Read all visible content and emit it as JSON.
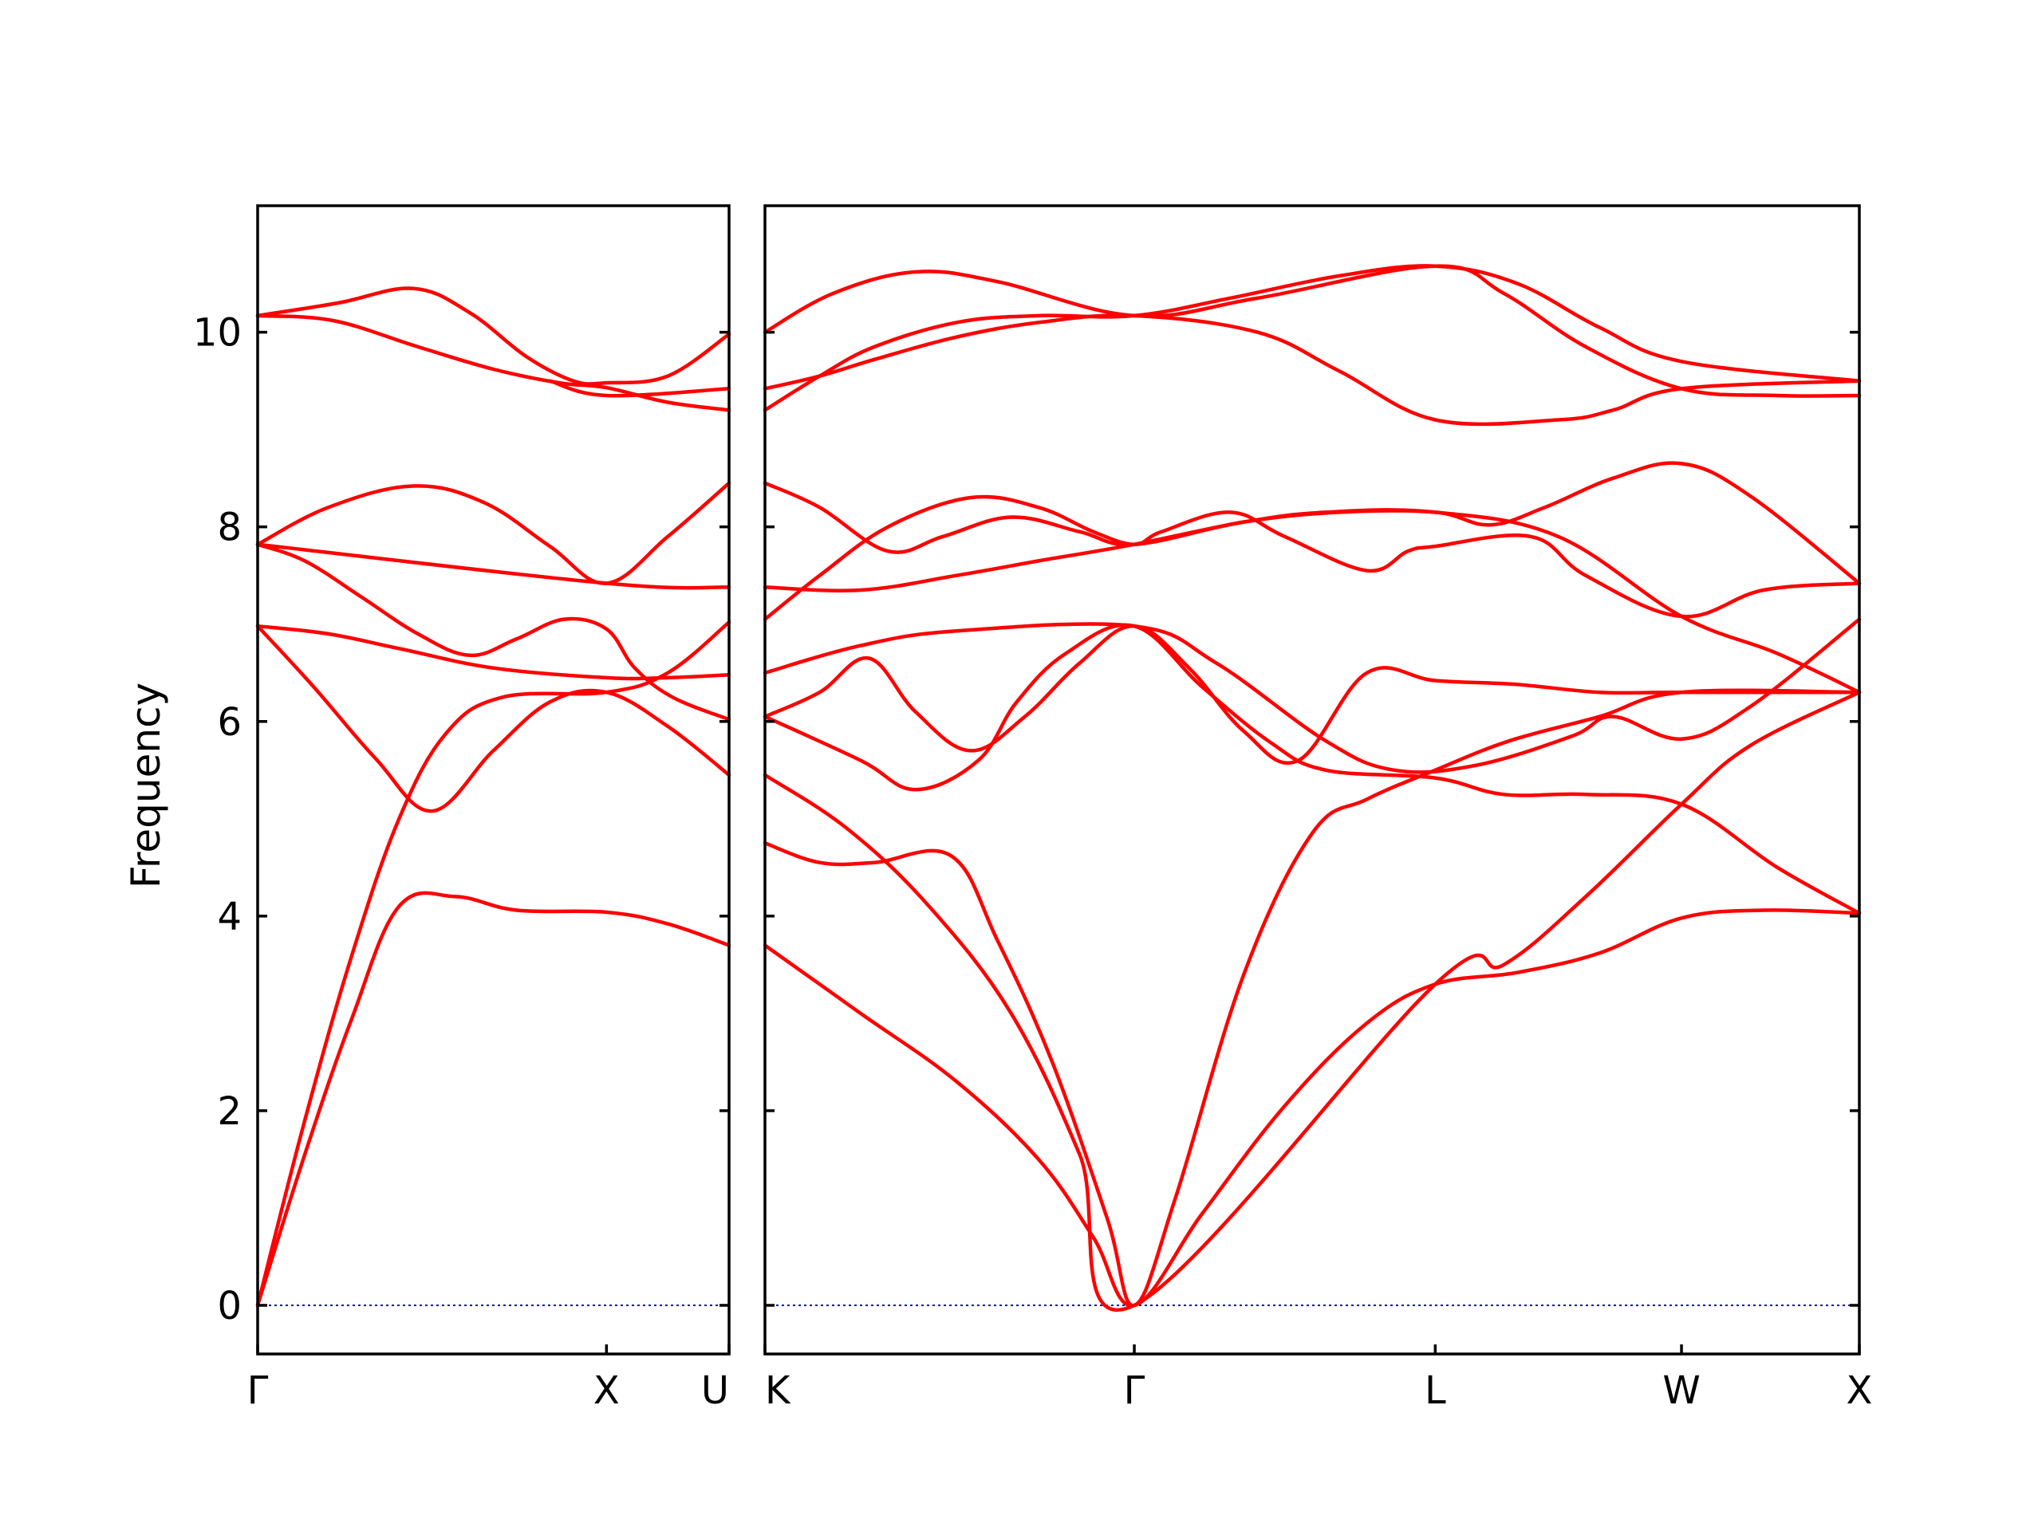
{
  "chart_data": {
    "type": "line",
    "title": "",
    "ylabel": "Frequency",
    "ylim": [
      -0.5,
      11.3
    ],
    "yticks": [
      0,
      2,
      4,
      6,
      8,
      10
    ],
    "ytick_labels": [
      "0",
      "2",
      "4",
      "6",
      "8",
      "10"
    ],
    "zero_line": true,
    "line_color": "#ff0000",
    "zero_line_color": "#0000cc",
    "panels": [
      {
        "name": "panel-gamma-x-u",
        "xrange": [
          0,
          1.0
        ],
        "xticks": [
          {
            "x": 0,
            "label": "Γ"
          },
          {
            "x": 0.74,
            "label": "X"
          },
          {
            "x": 1.0,
            "label": "U"
          }
        ],
        "bands": [
          [
            [
              0,
              0
            ],
            [
              0.1,
              1.55
            ],
            [
              0.2,
              2.95
            ],
            [
              0.3,
              4.1
            ],
            [
              0.42,
              4.2
            ],
            [
              0.55,
              4.06
            ],
            [
              0.74,
              4.04
            ],
            [
              0.87,
              3.92
            ],
            [
              1.0,
              3.7
            ]
          ],
          [
            [
              0,
              0
            ],
            [
              0.1,
              1.9
            ],
            [
              0.2,
              3.6
            ],
            [
              0.3,
              5.0
            ],
            [
              0.4,
              5.88
            ],
            [
              0.52,
              6.25
            ],
            [
              0.74,
              6.3
            ],
            [
              0.87,
              6.5
            ],
            [
              1.0,
              7.02
            ]
          ],
          [
            [
              0,
              6.98
            ],
            [
              0.12,
              6.35
            ],
            [
              0.25,
              5.62
            ],
            [
              0.37,
              5.08
            ],
            [
              0.5,
              5.7
            ],
            [
              0.62,
              6.2
            ],
            [
              0.74,
              6.3
            ],
            [
              0.87,
              5.95
            ],
            [
              1.0,
              5.45
            ]
          ],
          [
            [
              0,
              6.98
            ],
            [
              0.15,
              6.9
            ],
            [
              0.3,
              6.75
            ],
            [
              0.5,
              6.55
            ],
            [
              0.74,
              6.45
            ],
            [
              0.87,
              6.45
            ],
            [
              1.0,
              6.48
            ]
          ],
          [
            [
              0,
              7.82
            ],
            [
              0.1,
              7.65
            ],
            [
              0.22,
              7.28
            ],
            [
              0.34,
              6.9
            ],
            [
              0.45,
              6.68
            ],
            [
              0.55,
              6.85
            ],
            [
              0.65,
              7.05
            ],
            [
              0.74,
              6.95
            ],
            [
              0.8,
              6.55
            ],
            [
              0.88,
              6.25
            ],
            [
              1.0,
              6.02
            ]
          ],
          [
            [
              0,
              7.82
            ],
            [
              0.15,
              8.2
            ],
            [
              0.33,
              8.42
            ],
            [
              0.48,
              8.25
            ],
            [
              0.62,
              7.8
            ],
            [
              0.74,
              7.42
            ],
            [
              0.87,
              7.9
            ],
            [
              1.0,
              8.45
            ]
          ],
          [
            [
              0,
              7.82
            ],
            [
              0.74,
              7.42
            ],
            [
              1.0,
              7.38
            ]
          ],
          [
            [
              0,
              10.17
            ],
            [
              0.17,
              10.3
            ],
            [
              0.33,
              10.45
            ],
            [
              0.45,
              10.2
            ],
            [
              0.57,
              9.75
            ],
            [
              0.67,
              9.5
            ],
            [
              0.74,
              9.48
            ],
            [
              0.87,
              9.55
            ],
            [
              1.0,
              9.98
            ]
          ],
          [
            [
              0,
              10.17
            ],
            [
              0.16,
              10.12
            ],
            [
              0.34,
              9.85
            ],
            [
              0.5,
              9.62
            ],
            [
              0.64,
              9.48
            ],
            [
              0.74,
              9.43
            ],
            [
              0.87,
              9.28
            ],
            [
              1.0,
              9.2
            ]
          ],
          [
            [
              0.62,
              9.5
            ],
            [
              0.74,
              9.35
            ],
            [
              1.0,
              9.42
            ]
          ]
        ]
      },
      {
        "name": "panel-k-gamma-l-w-x",
        "xrange": [
          0,
          4.0
        ],
        "xticks": [
          {
            "x": 0,
            "label": "K"
          },
          {
            "x": 1.35,
            "label": "Γ"
          },
          {
            "x": 2.45,
            "label": "L"
          },
          {
            "x": 3.35,
            "label": "W"
          },
          {
            "x": 4.0,
            "label": "X"
          }
        ],
        "bands": [
          [
            [
              0,
              3.7
            ],
            [
              0.35,
              3.0
            ],
            [
              0.7,
              2.3
            ],
            [
              1.0,
              1.5
            ],
            [
              1.2,
              0.7
            ],
            [
              1.35,
              0
            ],
            [
              1.6,
              0.95
            ],
            [
              1.9,
              2.05
            ],
            [
              2.2,
              2.9
            ],
            [
              2.45,
              3.3
            ],
            [
              2.75,
              3.42
            ],
            [
              3.05,
              3.62
            ],
            [
              3.35,
              3.98
            ],
            [
              3.65,
              4.06
            ],
            [
              4.0,
              4.03
            ]
          ],
          [
            [
              0,
              5.45
            ],
            [
              0.3,
              4.9
            ],
            [
              0.6,
              4.1
            ],
            [
              0.9,
              3.0
            ],
            [
              1.15,
              1.55
            ],
            [
              1.35,
              0
            ],
            [
              2.45,
              3.3
            ],
            [
              2.7,
              3.5
            ],
            [
              3.0,
              4.2
            ],
            [
              3.35,
              5.15
            ],
            [
              3.6,
              5.75
            ],
            [
              4.0,
              6.3
            ]
          ],
          [
            [
              0,
              4.75
            ],
            [
              0.2,
              4.55
            ],
            [
              0.4,
              4.55
            ],
            [
              0.68,
              4.62
            ],
            [
              0.85,
              3.75
            ],
            [
              1.05,
              2.5
            ],
            [
              1.25,
              0.9
            ],
            [
              1.35,
              0
            ],
            [
              1.5,
              1.1
            ],
            [
              1.75,
              3.4
            ],
            [
              2.0,
              4.85
            ],
            [
              2.2,
              5.2
            ],
            [
              2.45,
              5.5
            ],
            [
              2.72,
              5.8
            ],
            [
              3.05,
              6.05
            ],
            [
              3.35,
              6.3
            ],
            [
              4.0,
              6.3
            ]
          ],
          [
            [
              0,
              6.05
            ],
            [
              0.35,
              5.6
            ],
            [
              0.55,
              5.3
            ],
            [
              0.78,
              5.6
            ],
            [
              0.92,
              6.2
            ],
            [
              1.1,
              6.7
            ],
            [
              1.35,
              6.98
            ],
            [
              1.6,
              6.35
            ],
            [
              1.85,
              5.78
            ],
            [
              2.05,
              5.5
            ],
            [
              2.45,
              5.42
            ],
            [
              2.7,
              5.25
            ],
            [
              3.0,
              5.25
            ],
            [
              3.35,
              5.15
            ],
            [
              3.7,
              4.5
            ],
            [
              4.0,
              4.03
            ]
          ],
          [
            [
              0,
              6.05
            ],
            [
              0.2,
              6.3
            ],
            [
              0.38,
              6.65
            ],
            [
              0.55,
              6.1
            ],
            [
              0.75,
              5.7
            ],
            [
              0.95,
              6.05
            ],
            [
              1.15,
              6.6
            ],
            [
              1.35,
              6.98
            ],
            [
              1.55,
              6.55
            ],
            [
              1.75,
              5.9
            ],
            [
              1.95,
              5.6
            ],
            [
              2.2,
              6.5
            ],
            [
              2.45,
              6.42
            ],
            [
              2.75,
              6.38
            ],
            [
              3.05,
              6.3
            ],
            [
              3.35,
              6.3
            ],
            [
              4.0,
              6.3
            ]
          ],
          [
            [
              0,
              6.5
            ],
            [
              0.35,
              6.78
            ],
            [
              0.7,
              6.93
            ],
            [
              1.35,
              6.98
            ],
            [
              1.65,
              6.6
            ],
            [
              2.05,
              5.8
            ],
            [
              2.3,
              5.5
            ],
            [
              2.6,
              5.55
            ],
            [
              2.95,
              5.85
            ],
            [
              3.1,
              6.05
            ],
            [
              3.35,
              5.82
            ],
            [
              3.6,
              6.15
            ],
            [
              4.0,
              7.05
            ]
          ],
          [
            [
              0,
              7.38
            ],
            [
              0.35,
              7.35
            ],
            [
              0.7,
              7.5
            ],
            [
              1.0,
              7.65
            ],
            [
              1.35,
              7.82
            ],
            [
              1.75,
              8.05
            ],
            [
              2.05,
              8.15
            ],
            [
              2.45,
              8.15
            ],
            [
              2.9,
              7.9
            ],
            [
              3.35,
              7.08
            ],
            [
              3.7,
              6.7
            ],
            [
              4.0,
              6.3
            ]
          ],
          [
            [
              0,
              7.05
            ],
            [
              0.2,
              7.5
            ],
            [
              0.45,
              8.0
            ],
            [
              0.75,
              8.3
            ],
            [
              1.0,
              8.2
            ],
            [
              1.2,
              7.95
            ],
            [
              1.35,
              7.82
            ],
            [
              1.45,
              7.95
            ],
            [
              1.7,
              8.15
            ],
            [
              1.9,
              7.9
            ],
            [
              2.2,
              7.55
            ],
            [
              2.35,
              7.75
            ],
            [
              2.45,
              7.8
            ],
            [
              2.8,
              7.9
            ],
            [
              3.0,
              7.5
            ],
            [
              3.35,
              7.08
            ],
            [
              3.65,
              7.35
            ],
            [
              4.0,
              7.42
            ]
          ],
          [
            [
              0,
              8.45
            ],
            [
              0.2,
              8.2
            ],
            [
              0.45,
              7.75
            ],
            [
              0.65,
              7.9
            ],
            [
              0.9,
              8.1
            ],
            [
              1.15,
              7.95
            ],
            [
              1.35,
              7.82
            ],
            [
              1.75,
              8.05
            ],
            [
              2.1,
              8.15
            ],
            [
              2.45,
              8.15
            ],
            [
              2.65,
              8.02
            ],
            [
              2.85,
              8.2
            ],
            [
              3.1,
              8.5
            ],
            [
              3.35,
              8.65
            ],
            [
              3.6,
              8.32
            ],
            [
              4.0,
              7.42
            ]
          ],
          [
            [
              0,
              9.42
            ],
            [
              0.2,
              9.55
            ],
            [
              0.4,
              9.72
            ],
            [
              0.7,
              9.95
            ],
            [
              1.0,
              10.1
            ],
            [
              1.35,
              10.17
            ],
            [
              1.8,
              10.0
            ],
            [
              2.1,
              9.6
            ],
            [
              2.45,
              9.1
            ],
            [
              2.9,
              9.1
            ],
            [
              3.1,
              9.2
            ],
            [
              3.35,
              9.42
            ],
            [
              4.0,
              9.5
            ]
          ],
          [
            [
              0,
              9.2
            ],
            [
              0.2,
              9.55
            ],
            [
              0.4,
              9.85
            ],
            [
              0.7,
              10.1
            ],
            [
              1.0,
              10.17
            ],
            [
              1.35,
              10.17
            ],
            [
              1.7,
              10.35
            ],
            [
              2.1,
              10.58
            ],
            [
              2.45,
              10.68
            ],
            [
              2.75,
              10.5
            ],
            [
              3.05,
              10.05
            ],
            [
              3.35,
              9.7
            ],
            [
              4.0,
              9.5
            ]
          ],
          [
            [
              0,
              10.0
            ],
            [
              0.25,
              10.4
            ],
            [
              0.55,
              10.62
            ],
            [
              0.85,
              10.52
            ],
            [
              1.35,
              10.17
            ],
            [
              1.8,
              10.35
            ],
            [
              2.45,
              10.68
            ],
            [
              2.7,
              10.4
            ],
            [
              3.0,
              9.85
            ],
            [
              3.35,
              9.42
            ],
            [
              3.7,
              9.35
            ],
            [
              4.0,
              9.35
            ]
          ]
        ]
      }
    ]
  }
}
